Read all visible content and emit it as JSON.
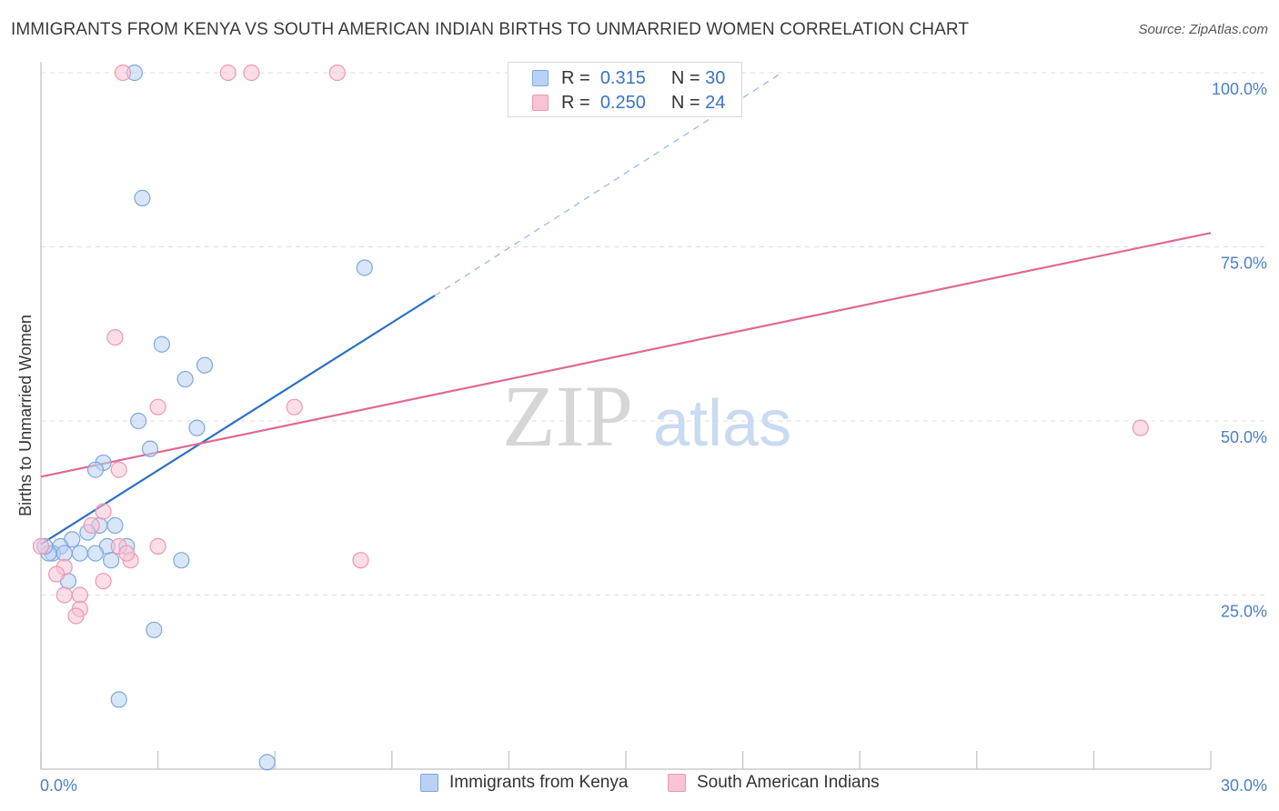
{
  "title": "IMMIGRANTS FROM KENYA VS SOUTH AMERICAN INDIAN BIRTHS TO UNMARRIED WOMEN CORRELATION CHART",
  "source": "Source: ZipAtlas.com",
  "watermark": {
    "zip": "ZIP",
    "atlas": "atlas"
  },
  "legend": {
    "r_label": "R =",
    "n_label": "N =",
    "items": [
      {
        "r": "0.315",
        "n": "30"
      },
      {
        "r": "0.250",
        "n": "24"
      }
    ]
  },
  "colors": {
    "kenya_fill": "#b9d1f2",
    "kenya_stroke": "#7ea7e0",
    "kenya_line": "#2e6fc7",
    "sai_fill": "#f8c3d3",
    "sai_stroke": "#ee97b3",
    "sai_line": "#e0698f",
    "grid": "#dddddd",
    "tick_text": "#4a7fc8"
  },
  "chart_data": {
    "type": "scatter",
    "title": "IMMIGRANTS FROM KENYA VS SOUTH AMERICAN INDIAN BIRTHS TO UNMARRIED WOMEN CORRELATION CHART",
    "xlabel": "",
    "ylabel": "Births to Unmarried Women",
    "xlim": [
      0,
      30
    ],
    "ylim": [
      0,
      100
    ],
    "x_ticks": [
      "0.0%",
      "30.0%"
    ],
    "y_ticks": [
      {
        "value": 25,
        "label": "25.0%"
      },
      {
        "value": 50,
        "label": "50.0%"
      },
      {
        "value": 75,
        "label": "75.0%"
      },
      {
        "value": 100,
        "label": "100.0%"
      }
    ],
    "grid": true,
    "legend_position": "bottom",
    "series": [
      {
        "name": "Immigrants from Kenya",
        "points": [
          [
            2.4,
            100
          ],
          [
            2.6,
            82
          ],
          [
            8.3,
            72
          ],
          [
            3.1,
            61
          ],
          [
            4.2,
            58
          ],
          [
            3.7,
            56
          ],
          [
            2.5,
            50
          ],
          [
            4.0,
            49
          ],
          [
            2.8,
            46
          ],
          [
            1.6,
            44
          ],
          [
            1.4,
            43
          ],
          [
            1.5,
            35
          ],
          [
            1.9,
            35
          ],
          [
            0.8,
            33
          ],
          [
            1.2,
            34
          ],
          [
            2.2,
            32
          ],
          [
            1.7,
            32
          ],
          [
            0.5,
            32
          ],
          [
            0.3,
            31
          ],
          [
            0.6,
            31
          ],
          [
            1.0,
            31
          ],
          [
            1.4,
            31
          ],
          [
            0.2,
            31
          ],
          [
            0.1,
            32
          ],
          [
            1.8,
            30
          ],
          [
            3.6,
            30
          ],
          [
            0.7,
            27
          ],
          [
            2.9,
            20
          ],
          [
            2.0,
            10
          ],
          [
            5.8,
            1
          ]
        ],
        "trend": {
          "x0": 0.0,
          "y0": 32.3,
          "x1": 10.1,
          "y1": 68.0,
          "dashed_to_x": 19.0,
          "dashed_to_y": 100.0
        }
      },
      {
        "name": "South American Indians",
        "points": [
          [
            2.1,
            100
          ],
          [
            4.8,
            100
          ],
          [
            5.4,
            100
          ],
          [
            7.6,
            100
          ],
          [
            1.9,
            62
          ],
          [
            3.0,
            52
          ],
          [
            6.5,
            52
          ],
          [
            28.2,
            49
          ],
          [
            2.0,
            43
          ],
          [
            1.6,
            37
          ],
          [
            1.3,
            35
          ],
          [
            0.0,
            32
          ],
          [
            2.0,
            32
          ],
          [
            2.3,
            30
          ],
          [
            3.0,
            32
          ],
          [
            8.2,
            30
          ],
          [
            0.6,
            29
          ],
          [
            0.4,
            28
          ],
          [
            1.6,
            27
          ],
          [
            0.6,
            25
          ],
          [
            1.0,
            25
          ],
          [
            1.0,
            23
          ],
          [
            0.9,
            22
          ],
          [
            2.2,
            31
          ]
        ],
        "trend": {
          "x0": 0.0,
          "y0": 42.0,
          "x1": 30.0,
          "y1": 77.0
        }
      }
    ]
  }
}
